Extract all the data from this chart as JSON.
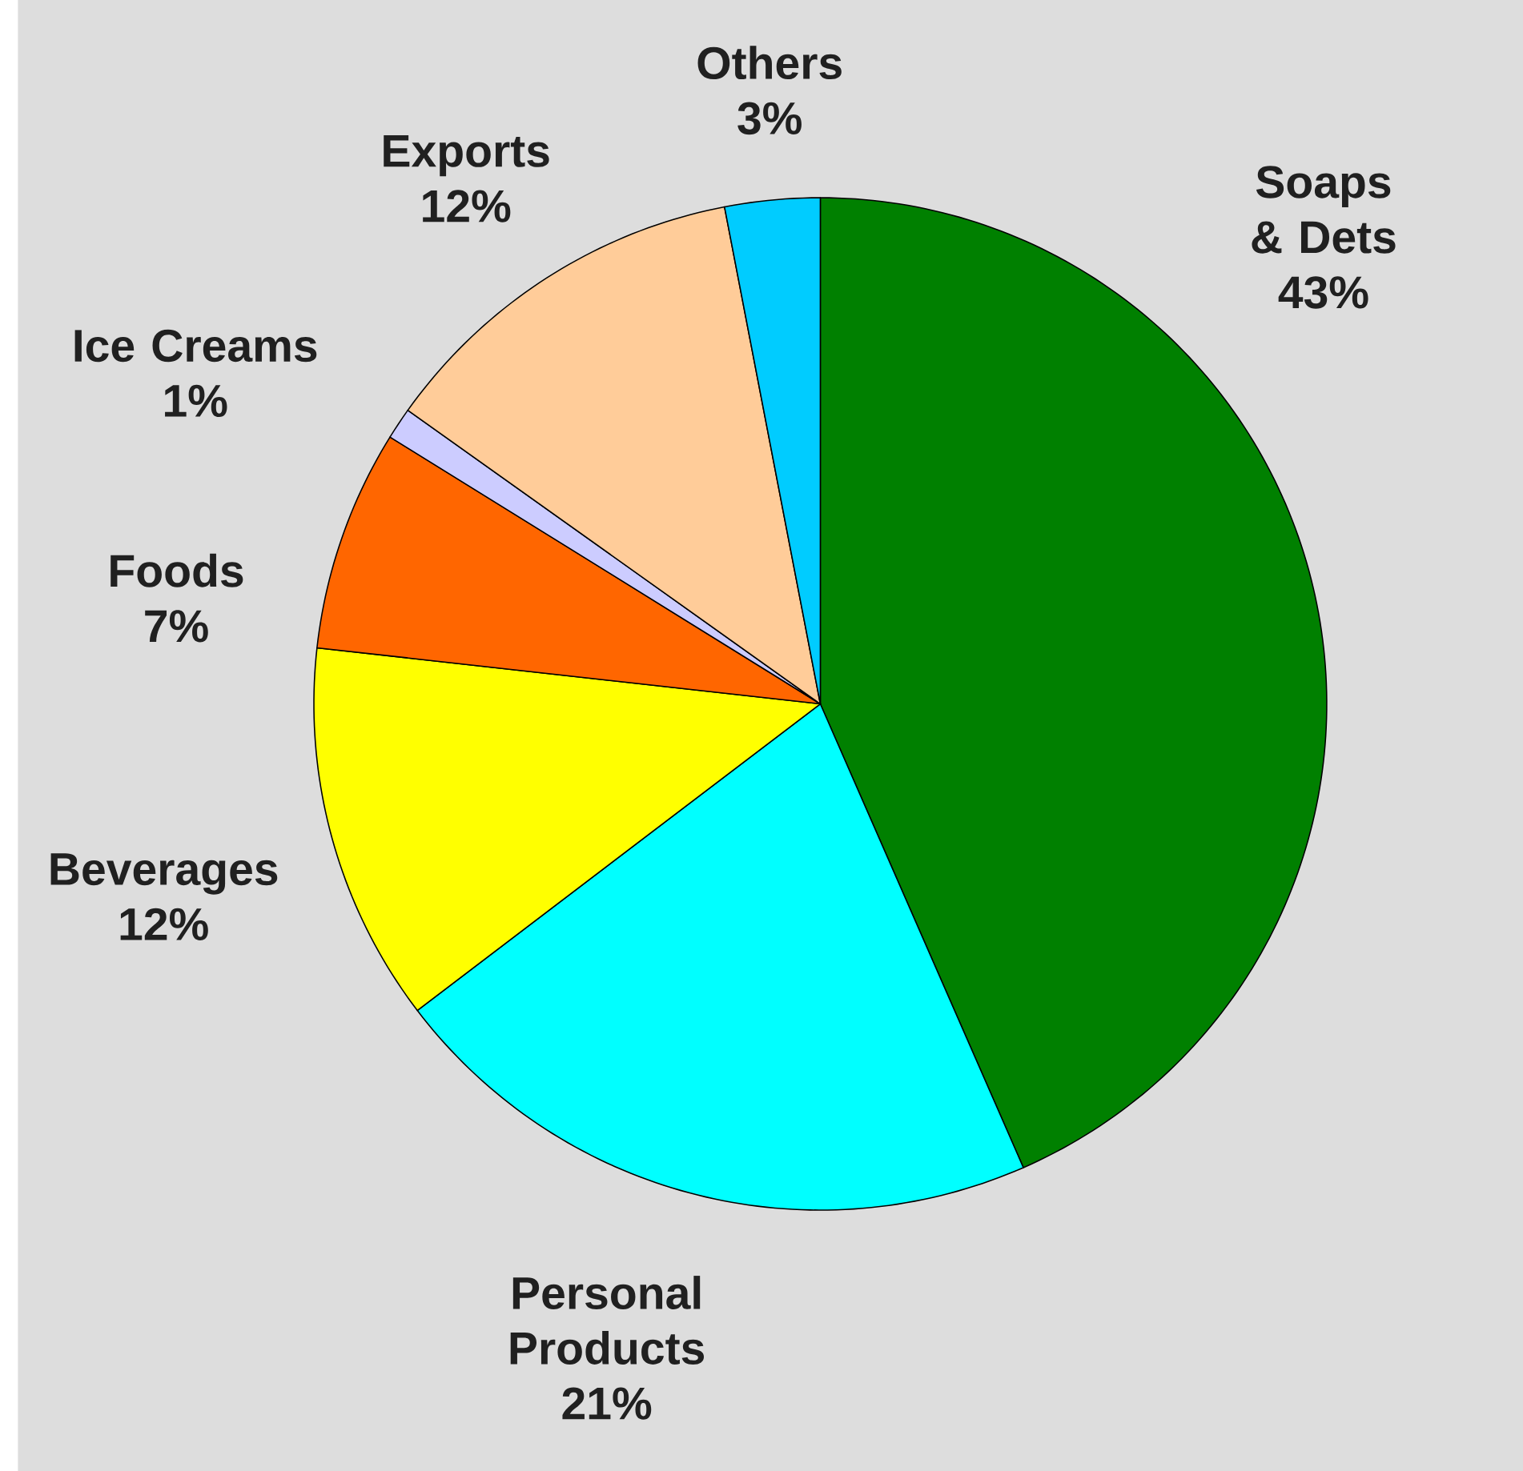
{
  "chart_data": {
    "type": "pie",
    "categories": [
      "Soaps & Dets",
      "Personal Products",
      "Beverages",
      "Foods",
      "Ice Creams",
      "Exports",
      "Others"
    ],
    "values": [
      43,
      21,
      12,
      7,
      1,
      12,
      3
    ],
    "value_labels": [
      "43%",
      "21%",
      "12%",
      "7%",
      "1%",
      "12%",
      "3%"
    ],
    "colors": [
      "#008000",
      "#00ffff",
      "#ffff00",
      "#ff6600",
      "#ccccff",
      "#ffcc99",
      "#00ccff"
    ]
  }
}
